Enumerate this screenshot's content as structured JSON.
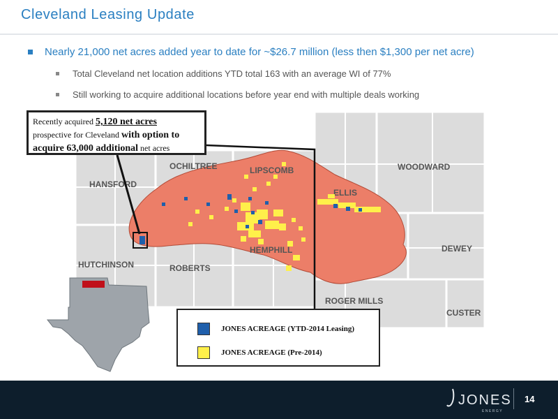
{
  "slide": {
    "title": "Cleveland Leasing Update",
    "bullet": "Nearly 21,000 net acres added year to date for ~$26.7 million (less then $1,300 per net acre)",
    "sub_bullets": [
      "Total Cleveland net location additions YTD total 163 with an average WI of 77%",
      "Still working to acquire additional locations before year end with multiple deals working"
    ],
    "page_number": "14"
  },
  "map": {
    "counties": [
      "HANSFORD",
      "OCHILTREE",
      "LIPSCOMB",
      "WOODWARD",
      "ELLIS",
      "HEMPHILL",
      "HUTCHINSON",
      "ROBERTS",
      "DEWEY",
      "ROGER MILLS",
      "CUSTER"
    ],
    "colors": {
      "play_area": "#ec7e68",
      "ytd_acreage": "#1f5fab",
      "pre2014_acreage": "#fff04a",
      "county_fill": "#dcdcdc",
      "highlight_counties": "#c0101a"
    }
  },
  "callout": {
    "line1_prefix": "Recently acquired ",
    "line1_bold": "5,120 net acres",
    "line2_prefix": "prospective for Cleveland ",
    "line2_bold": "with option to",
    "line3_bold": "acquire 63,000 additional",
    "line3_suffix": " net acres"
  },
  "legend": {
    "items": [
      {
        "label": "JONES ACREAGE (YTD-2014 Leasing)",
        "color": "#1f5fab"
      },
      {
        "label": "JONES ACREAGE (Pre-2014)",
        "color": "#fff04a"
      }
    ]
  },
  "footer": {
    "logo_text": "JONES",
    "logo_sub": "ENERGY"
  }
}
